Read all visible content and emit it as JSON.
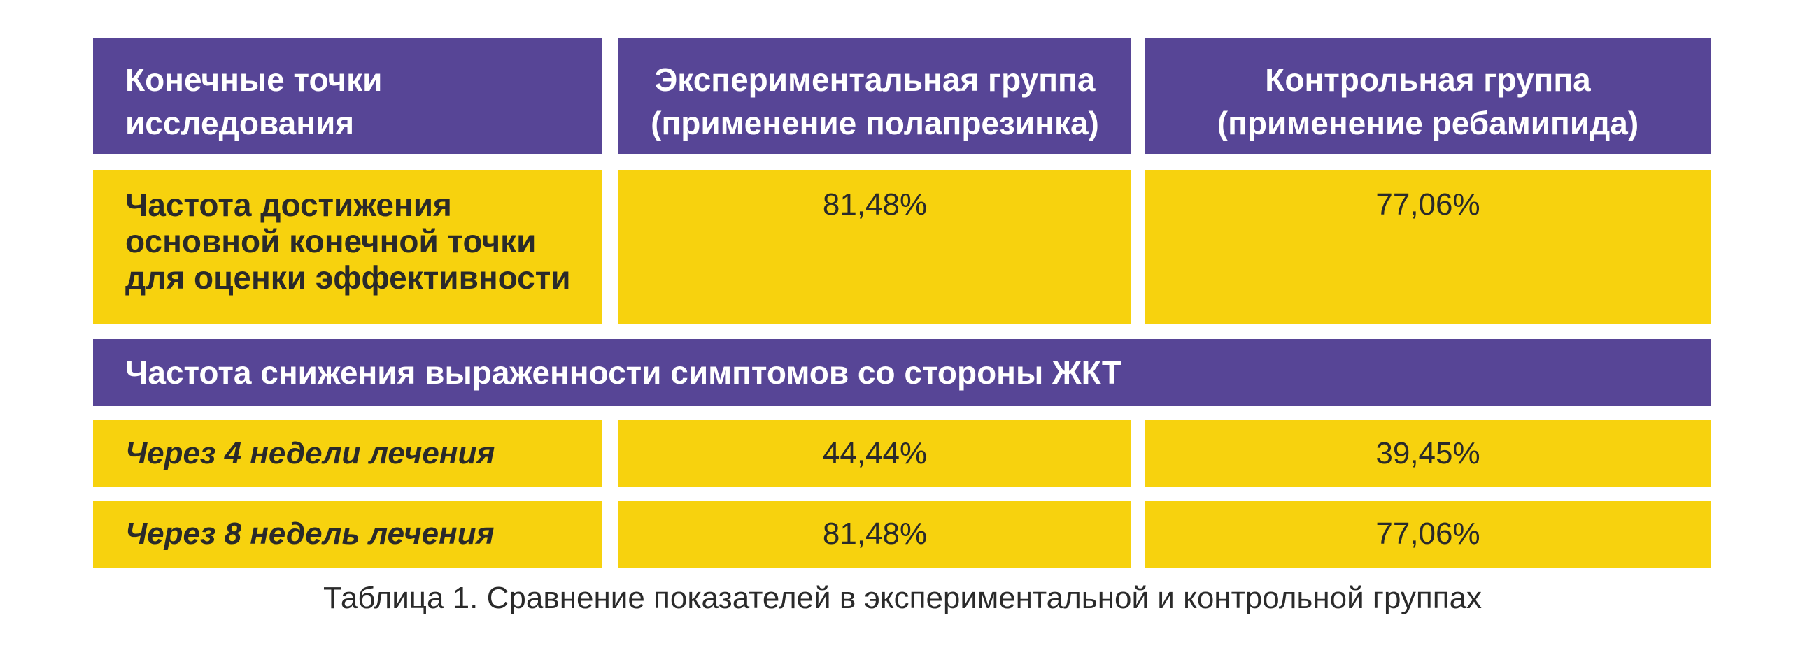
{
  "header": {
    "col1": [
      "Конечные точки",
      "исследования"
    ],
    "col2": [
      "Экспериментальная группа",
      "(применение полапрезинка)"
    ],
    "col3": [
      "Контрольная группа",
      "(применение ребамипида)"
    ]
  },
  "rows": [
    {
      "label": [
        "Частота достижения",
        "основной конечной точки",
        "для оценки эффективности"
      ],
      "experimental": "81,48%",
      "control": "77,06%"
    }
  ],
  "section_title": "Частота снижения выраженности симптомов со стороны ЖКТ",
  "subrows": [
    {
      "label": "Через 4 недели лечения",
      "experimental": "44,44%",
      "control": "39,45%"
    },
    {
      "label": "Через 8 недель лечения",
      "experimental": "81,48%",
      "control": "77,06%"
    }
  ],
  "caption": "Таблица 1. Сравнение показателей в экспериментальной и контрольной группах",
  "colors": {
    "header_bg": "#574596",
    "cell_bg": "#f7d20e",
    "text": "#2a2a2a"
  }
}
